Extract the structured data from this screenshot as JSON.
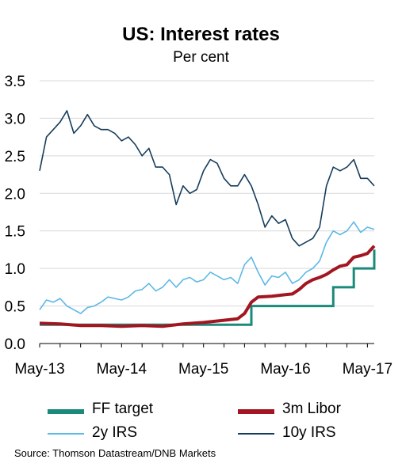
{
  "chart_data": {
    "type": "line",
    "title": "US: Interest rates",
    "subtitle": "Per cent",
    "ylim": [
      0,
      3.5
    ],
    "yticks": [
      "0.0",
      "0.5",
      "1.0",
      "1.5",
      "2.0",
      "2.5",
      "3.0",
      "3.5"
    ],
    "xlim": [
      "2013-05",
      "2017-06"
    ],
    "xticks": [
      {
        "label": "May-13",
        "date": "2013-05"
      },
      {
        "label": "May-14",
        "date": "2014-05"
      },
      {
        "label": "May-15",
        "date": "2015-05"
      },
      {
        "label": "May-16",
        "date": "2016-05"
      },
      {
        "label": "May-17",
        "date": "2017-05"
      }
    ],
    "grid": "horizontal",
    "legend_position": "bottom",
    "series": [
      {
        "name": "FF target",
        "color": "#1a8a7b",
        "step": true,
        "points": [
          [
            "2013-05",
            0.25
          ],
          [
            "2015-12",
            0.25
          ],
          [
            "2015-12",
            0.5
          ],
          [
            "2016-12",
            0.5
          ],
          [
            "2016-12",
            0.75
          ],
          [
            "2017-03",
            0.75
          ],
          [
            "2017-03",
            1.0
          ],
          [
            "2017-06",
            1.0
          ],
          [
            "2017-06",
            1.25
          ]
        ]
      },
      {
        "name": "3m Libor",
        "color": "#a31621",
        "points": [
          [
            "2013-05",
            0.27
          ],
          [
            "2013-08",
            0.26
          ],
          [
            "2013-11",
            0.24
          ],
          [
            "2014-02",
            0.24
          ],
          [
            "2014-05",
            0.23
          ],
          [
            "2014-08",
            0.24
          ],
          [
            "2014-11",
            0.23
          ],
          [
            "2015-02",
            0.26
          ],
          [
            "2015-05",
            0.28
          ],
          [
            "2015-08",
            0.31
          ],
          [
            "2015-10",
            0.33
          ],
          [
            "2015-11",
            0.4
          ],
          [
            "2015-12",
            0.55
          ],
          [
            "2016-01",
            0.62
          ],
          [
            "2016-03",
            0.63
          ],
          [
            "2016-05",
            0.65
          ],
          [
            "2016-06",
            0.66
          ],
          [
            "2016-07",
            0.72
          ],
          [
            "2016-08",
            0.8
          ],
          [
            "2016-09",
            0.85
          ],
          [
            "2016-10",
            0.88
          ],
          [
            "2016-11",
            0.92
          ],
          [
            "2016-12",
            0.98
          ],
          [
            "2017-01",
            1.03
          ],
          [
            "2017-02",
            1.05
          ],
          [
            "2017-03",
            1.15
          ],
          [
            "2017-04",
            1.17
          ],
          [
            "2017-05",
            1.2
          ],
          [
            "2017-06",
            1.3
          ]
        ]
      },
      {
        "name": "2y IRS",
        "color": "#5cb8e6",
        "points": [
          [
            "2013-05",
            0.45
          ],
          [
            "2013-06",
            0.58
          ],
          [
            "2013-07",
            0.55
          ],
          [
            "2013-08",
            0.6
          ],
          [
            "2013-09",
            0.5
          ],
          [
            "2013-10",
            0.45
          ],
          [
            "2013-11",
            0.4
          ],
          [
            "2013-12",
            0.48
          ],
          [
            "2014-01",
            0.5
          ],
          [
            "2014-02",
            0.55
          ],
          [
            "2014-03",
            0.62
          ],
          [
            "2014-04",
            0.6
          ],
          [
            "2014-05",
            0.58
          ],
          [
            "2014-06",
            0.62
          ],
          [
            "2014-07",
            0.7
          ],
          [
            "2014-08",
            0.72
          ],
          [
            "2014-09",
            0.8
          ],
          [
            "2014-10",
            0.7
          ],
          [
            "2014-11",
            0.75
          ],
          [
            "2014-12",
            0.85
          ],
          [
            "2015-01",
            0.75
          ],
          [
            "2015-02",
            0.85
          ],
          [
            "2015-03",
            0.88
          ],
          [
            "2015-04",
            0.82
          ],
          [
            "2015-05",
            0.85
          ],
          [
            "2015-06",
            0.95
          ],
          [
            "2015-07",
            0.9
          ],
          [
            "2015-08",
            0.85
          ],
          [
            "2015-09",
            0.88
          ],
          [
            "2015-10",
            0.8
          ],
          [
            "2015-11",
            1.05
          ],
          [
            "2015-12",
            1.15
          ],
          [
            "2016-01",
            0.95
          ],
          [
            "2016-02",
            0.78
          ],
          [
            "2016-03",
            0.9
          ],
          [
            "2016-04",
            0.88
          ],
          [
            "2016-05",
            0.95
          ],
          [
            "2016-06",
            0.8
          ],
          [
            "2016-07",
            0.85
          ],
          [
            "2016-08",
            0.95
          ],
          [
            "2016-09",
            1.0
          ],
          [
            "2016-10",
            1.1
          ],
          [
            "2016-11",
            1.35
          ],
          [
            "2016-12",
            1.5
          ],
          [
            "2017-01",
            1.45
          ],
          [
            "2017-02",
            1.5
          ],
          [
            "2017-03",
            1.62
          ],
          [
            "2017-04",
            1.48
          ],
          [
            "2017-05",
            1.55
          ],
          [
            "2017-06",
            1.52
          ]
        ]
      },
      {
        "name": "10y IRS",
        "color": "#163d5c",
        "points": [
          [
            "2013-05",
            2.3
          ],
          [
            "2013-06",
            2.75
          ],
          [
            "2013-07",
            2.85
          ],
          [
            "2013-08",
            2.95
          ],
          [
            "2013-09",
            3.1
          ],
          [
            "2013-10",
            2.8
          ],
          [
            "2013-11",
            2.9
          ],
          [
            "2013-12",
            3.05
          ],
          [
            "2014-01",
            2.9
          ],
          [
            "2014-02",
            2.85
          ],
          [
            "2014-03",
            2.85
          ],
          [
            "2014-04",
            2.8
          ],
          [
            "2014-05",
            2.7
          ],
          [
            "2014-06",
            2.75
          ],
          [
            "2014-07",
            2.65
          ],
          [
            "2014-08",
            2.5
          ],
          [
            "2014-09",
            2.6
          ],
          [
            "2014-10",
            2.35
          ],
          [
            "2014-11",
            2.35
          ],
          [
            "2014-12",
            2.25
          ],
          [
            "2015-01",
            1.85
          ],
          [
            "2015-02",
            2.1
          ],
          [
            "2015-03",
            2.0
          ],
          [
            "2015-04",
            2.05
          ],
          [
            "2015-05",
            2.3
          ],
          [
            "2015-06",
            2.45
          ],
          [
            "2015-07",
            2.4
          ],
          [
            "2015-08",
            2.2
          ],
          [
            "2015-09",
            2.1
          ],
          [
            "2015-10",
            2.1
          ],
          [
            "2015-11",
            2.25
          ],
          [
            "2015-12",
            2.1
          ],
          [
            "2016-01",
            1.85
          ],
          [
            "2016-02",
            1.55
          ],
          [
            "2016-03",
            1.7
          ],
          [
            "2016-04",
            1.6
          ],
          [
            "2016-05",
            1.65
          ],
          [
            "2016-06",
            1.4
          ],
          [
            "2016-07",
            1.3
          ],
          [
            "2016-08",
            1.35
          ],
          [
            "2016-09",
            1.4
          ],
          [
            "2016-10",
            1.55
          ],
          [
            "2016-11",
            2.1
          ],
          [
            "2016-12",
            2.35
          ],
          [
            "2017-01",
            2.3
          ],
          [
            "2017-02",
            2.35
          ],
          [
            "2017-03",
            2.45
          ],
          [
            "2017-04",
            2.2
          ],
          [
            "2017-05",
            2.2
          ],
          [
            "2017-06",
            2.1
          ]
        ]
      }
    ]
  },
  "source": "Source: Thomson Datastream/DNB Markets"
}
